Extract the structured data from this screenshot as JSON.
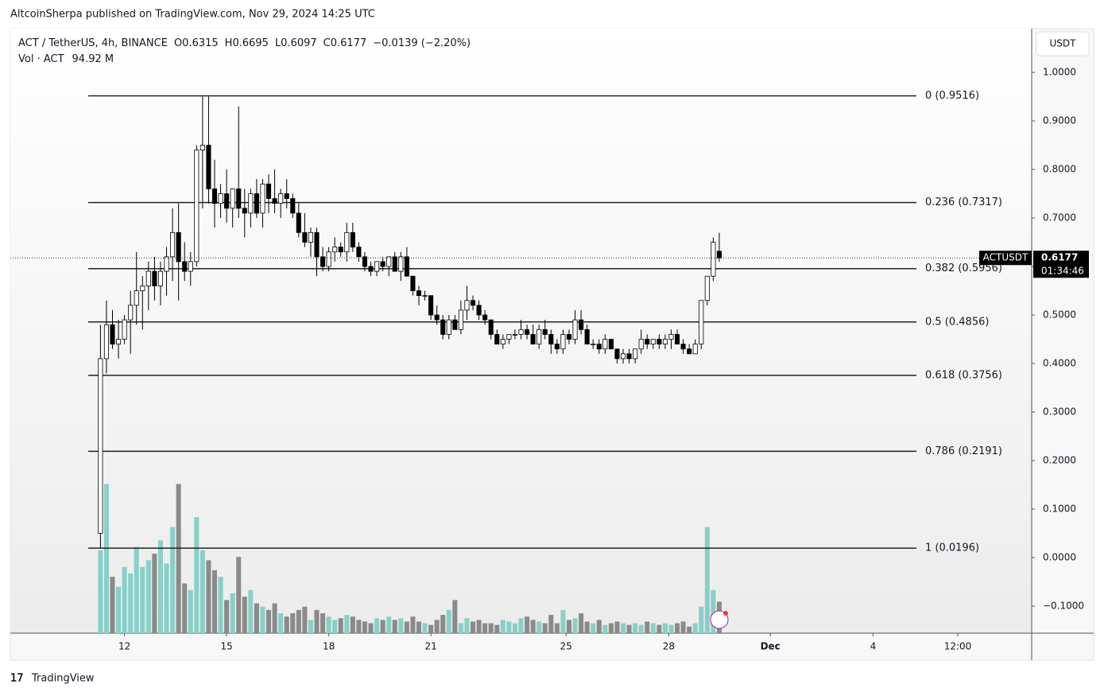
{
  "header": {
    "byline": "AltcoinSherpa published on TradingView.com, Nov 29, 2024 14:25 UTC",
    "symbol": "ACT / TetherUS, 4h, BINANCE",
    "open": "O0.6315",
    "high": "H0.6695",
    "low": "L0.6097",
    "close": "C0.6177",
    "change": "−0.0139 (−2.20%)",
    "volume_label": "Vol · ACT",
    "volume_value": "94.92 M",
    "currency": "USDT",
    "footer": "TradingView"
  },
  "chart_data": {
    "type": "candlestick",
    "price_tag": {
      "symbol": "ACTUSDT",
      "price": "0.6177",
      "countdown": "01:34:46"
    },
    "xlim": [
      -15,
      155
    ],
    "xticks": [
      {
        "value": 4,
        "label": "12"
      },
      {
        "value": 21,
        "label": "15"
      },
      {
        "value": 38,
        "label": "18"
      },
      {
        "value": 55,
        "label": "21"
      },
      {
        "value": 77.5,
        "label": "25"
      },
      {
        "value": 94.6,
        "label": "28"
      },
      {
        "value": 111.5,
        "label": "Dec"
      },
      {
        "value": 128.6,
        "label": "4"
      },
      {
        "value": 142.7,
        "label": "12:00"
      }
    ],
    "ylim": [
      -0.1557,
      1.0902
    ],
    "yticks": [
      {
        "value": 1,
        "label": "1.0000"
      },
      {
        "value": 0.9,
        "label": "0.9000"
      },
      {
        "value": 0.8,
        "label": "0.8000"
      },
      {
        "value": 0.7,
        "label": "0.7000"
      },
      {
        "value": 0.6,
        "label": "0.6000"
      },
      {
        "value": 0.5,
        "label": "0.5000"
      },
      {
        "value": 0.4,
        "label": "0.4000"
      },
      {
        "value": 0.3,
        "label": "0.3000"
      },
      {
        "value": 0.2,
        "label": "0.2000"
      },
      {
        "value": 0.1,
        "label": "0.1000"
      },
      {
        "value": 0,
        "label": "0.0000"
      },
      {
        "value": -0.1,
        "label": "−0.1000"
      }
    ],
    "up_color": "#ffffff",
    "down_color": "#000000",
    "volume_up_color": "#89cfc8",
    "volume_down_color": "#8a8a8a",
    "fib_levels": {
      "values": [
        0.9516,
        0.7317,
        0.5956,
        0.4856,
        0.3756,
        0.2191,
        0.0196
      ],
      "value_labels": [
        "0 (0.9516)",
        "0.236 (0.7317)",
        "0.382 (0.5956)",
        "0.5 (0.4856)",
        "0.618 (0.3756)",
        "0.786 (0.2191)",
        "1 (0.0196)"
      ]
    },
    "candles": [
      [
        0.05,
        0.48,
        0.02,
        0.41
      ],
      [
        0.41,
        0.53,
        0.38,
        0.48
      ],
      [
        0.48,
        0.51,
        0.43,
        0.44
      ],
      [
        0.44,
        0.49,
        0.41,
        0.45
      ],
      [
        0.45,
        0.5,
        0.44,
        0.49
      ],
      [
        0.49,
        0.55,
        0.42,
        0.52
      ],
      [
        0.52,
        0.63,
        0.48,
        0.55
      ],
      [
        0.55,
        0.58,
        0.47,
        0.56
      ],
      [
        0.56,
        0.61,
        0.51,
        0.59
      ],
      [
        0.59,
        0.62,
        0.53,
        0.56
      ],
      [
        0.56,
        0.61,
        0.52,
        0.59
      ],
      [
        0.59,
        0.64,
        0.54,
        0.62
      ],
      [
        0.62,
        0.72,
        0.57,
        0.67
      ],
      [
        0.67,
        0.73,
        0.53,
        0.61
      ],
      [
        0.61,
        0.65,
        0.57,
        0.59
      ],
      [
        0.59,
        0.63,
        0.56,
        0.61
      ],
      [
        0.61,
        0.85,
        0.6,
        0.84
      ],
      [
        0.84,
        0.95,
        0.72,
        0.85
      ],
      [
        0.85,
        0.95,
        0.73,
        0.76
      ],
      [
        0.76,
        0.82,
        0.68,
        0.73
      ],
      [
        0.73,
        0.77,
        0.7,
        0.75
      ],
      [
        0.75,
        0.8,
        0.69,
        0.72
      ],
      [
        0.72,
        0.76,
        0.68,
        0.76
      ],
      [
        0.76,
        0.93,
        0.7,
        0.72
      ],
      [
        0.72,
        0.76,
        0.66,
        0.71
      ],
      [
        0.71,
        0.76,
        0.68,
        0.75
      ],
      [
        0.75,
        0.78,
        0.7,
        0.71
      ],
      [
        0.71,
        0.78,
        0.68,
        0.77
      ],
      [
        0.77,
        0.79,
        0.71,
        0.74
      ],
      [
        0.74,
        0.8,
        0.71,
        0.73
      ],
      [
        0.73,
        0.76,
        0.7,
        0.75
      ],
      [
        0.75,
        0.78,
        0.72,
        0.74
      ],
      [
        0.74,
        0.75,
        0.7,
        0.71
      ],
      [
        0.71,
        0.73,
        0.66,
        0.67
      ],
      [
        0.67,
        0.71,
        0.64,
        0.65
      ],
      [
        0.65,
        0.68,
        0.62,
        0.67
      ],
      [
        0.67,
        0.68,
        0.58,
        0.62
      ],
      [
        0.62,
        0.64,
        0.59,
        0.6
      ],
      [
        0.6,
        0.64,
        0.59,
        0.63
      ],
      [
        0.63,
        0.66,
        0.61,
        0.64
      ],
      [
        0.64,
        0.65,
        0.62,
        0.63
      ],
      [
        0.63,
        0.69,
        0.61,
        0.67
      ],
      [
        0.67,
        0.69,
        0.63,
        0.64
      ],
      [
        0.64,
        0.65,
        0.61,
        0.62
      ],
      [
        0.62,
        0.63,
        0.59,
        0.6
      ],
      [
        0.6,
        0.61,
        0.58,
        0.59
      ],
      [
        0.59,
        0.61,
        0.58,
        0.61
      ],
      [
        0.61,
        0.62,
        0.59,
        0.6
      ],
      [
        0.6,
        0.62,
        0.58,
        0.62
      ],
      [
        0.62,
        0.63,
        0.59,
        0.59
      ],
      [
        0.59,
        0.63,
        0.57,
        0.62
      ],
      [
        0.62,
        0.64,
        0.58,
        0.58
      ],
      [
        0.58,
        0.58,
        0.54,
        0.55
      ],
      [
        0.55,
        0.56,
        0.52,
        0.54
      ],
      [
        0.54,
        0.55,
        0.53,
        0.54
      ],
      [
        0.54,
        0.54,
        0.49,
        0.5
      ],
      [
        0.5,
        0.52,
        0.48,
        0.49
      ],
      [
        0.49,
        0.5,
        0.45,
        0.46
      ],
      [
        0.46,
        0.5,
        0.45,
        0.49
      ],
      [
        0.49,
        0.5,
        0.47,
        0.47
      ],
      [
        0.47,
        0.53,
        0.46,
        0.51
      ],
      [
        0.51,
        0.56,
        0.49,
        0.53
      ],
      [
        0.53,
        0.54,
        0.51,
        0.52
      ],
      [
        0.52,
        0.53,
        0.49,
        0.5
      ],
      [
        0.5,
        0.51,
        0.48,
        0.49
      ],
      [
        0.49,
        0.49,
        0.45,
        0.46
      ],
      [
        0.46,
        0.47,
        0.44,
        0.44
      ],
      [
        0.44,
        0.46,
        0.43,
        0.45
      ],
      [
        0.45,
        0.46,
        0.44,
        0.46
      ],
      [
        0.46,
        0.47,
        0.45,
        0.46
      ],
      [
        0.46,
        0.49,
        0.45,
        0.47
      ],
      [
        0.47,
        0.48,
        0.45,
        0.46
      ],
      [
        0.46,
        0.48,
        0.44,
        0.44
      ],
      [
        0.44,
        0.48,
        0.43,
        0.47
      ],
      [
        0.47,
        0.49,
        0.45,
        0.46
      ],
      [
        0.46,
        0.47,
        0.42,
        0.44
      ],
      [
        0.44,
        0.45,
        0.42,
        0.43
      ],
      [
        0.43,
        0.47,
        0.42,
        0.46
      ],
      [
        0.46,
        0.47,
        0.44,
        0.45
      ],
      [
        0.45,
        0.51,
        0.44,
        0.49
      ],
      [
        0.49,
        0.51,
        0.46,
        0.47
      ],
      [
        0.47,
        0.48,
        0.44,
        0.44
      ],
      [
        0.44,
        0.45,
        0.43,
        0.44
      ],
      [
        0.44,
        0.45,
        0.42,
        0.43
      ],
      [
        0.43,
        0.46,
        0.42,
        0.45
      ],
      [
        0.45,
        0.45,
        0.43,
        0.43
      ],
      [
        0.43,
        0.43,
        0.4,
        0.41
      ],
      [
        0.41,
        0.43,
        0.4,
        0.42
      ],
      [
        0.42,
        0.43,
        0.4,
        0.41
      ],
      [
        0.41,
        0.43,
        0.4,
        0.43
      ],
      [
        0.43,
        0.47,
        0.42,
        0.45
      ],
      [
        0.45,
        0.46,
        0.43,
        0.44
      ],
      [
        0.44,
        0.45,
        0.43,
        0.45
      ],
      [
        0.45,
        0.46,
        0.43,
        0.44
      ],
      [
        0.44,
        0.46,
        0.43,
        0.45
      ],
      [
        0.45,
        0.47,
        0.43,
        0.46
      ],
      [
        0.46,
        0.47,
        0.44,
        0.44
      ],
      [
        0.44,
        0.45,
        0.42,
        0.43
      ],
      [
        0.43,
        0.44,
        0.42,
        0.42
      ],
      [
        0.42,
        0.45,
        0.42,
        0.44
      ],
      [
        0.44,
        0.53,
        0.43,
        0.53
      ],
      [
        0.53,
        0.58,
        0.52,
        0.58
      ],
      [
        0.58,
        0.66,
        0.57,
        0.65
      ],
      [
        0.6315,
        0.6695,
        0.6097,
        0.6177
      ]
    ],
    "volumes": [
      250,
      450,
      170,
      140,
      200,
      180,
      260,
      200,
      220,
      240,
      280,
      210,
      320,
      450,
      150,
      130,
      350,
      250,
      220,
      190,
      170,
      100,
      120,
      230,
      110,
      130,
      90,
      80,
      70,
      90,
      60,
      50,
      60,
      70,
      80,
      40,
      70,
      60,
      50,
      40,
      45,
      55,
      50,
      40,
      35,
      30,
      45,
      40,
      50,
      40,
      45,
      35,
      50,
      35,
      30,
      25,
      40,
      55,
      70,
      100,
      30,
      45,
      35,
      40,
      30,
      30,
      25,
      40,
      35,
      30,
      45,
      50,
      40,
      35,
      30,
      55,
      30,
      70,
      40,
      45,
      60,
      35,
      30,
      40,
      25,
      30,
      35,
      30,
      25,
      30,
      25,
      35,
      30,
      25,
      30,
      25,
      30,
      35,
      20,
      30,
      80,
      320,
      130,
      94.92
    ],
    "volume_max": 480
  }
}
